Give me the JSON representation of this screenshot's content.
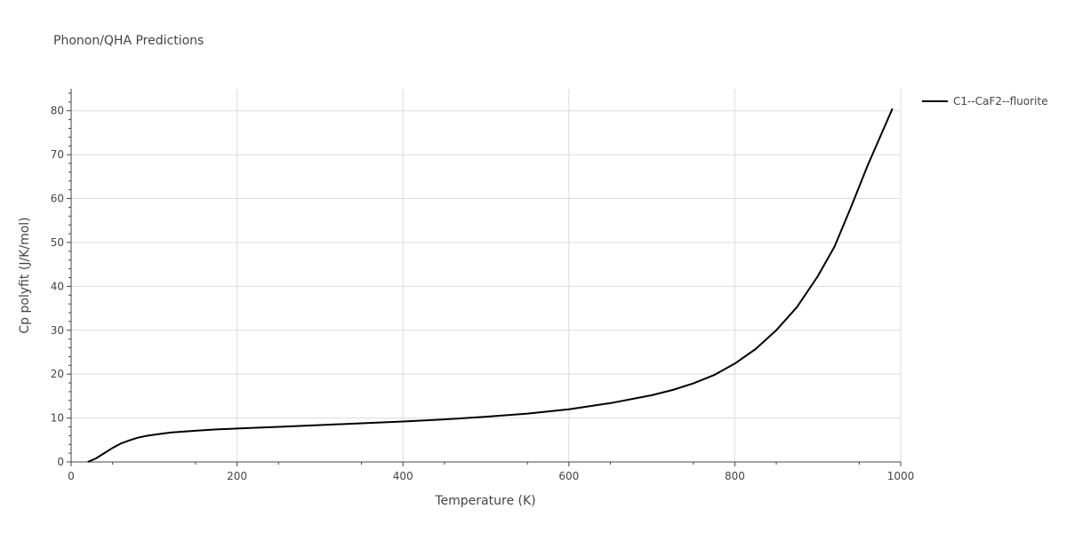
{
  "chart_data": {
    "type": "line",
    "title": "Phonon/QHA Predictions",
    "xlabel": "Temperature (K)",
    "ylabel": "Cp polyfit (J/K/mol)",
    "xlim": [
      0,
      1000
    ],
    "ylim": [
      0,
      85
    ],
    "x_ticks": [
      0,
      200,
      400,
      600,
      800,
      1000
    ],
    "y_ticks": [
      0,
      10,
      20,
      30,
      40,
      50,
      60,
      70,
      80
    ],
    "grid": true,
    "legend_position": "top-right",
    "series": [
      {
        "name": "C1--CaF2--fluorite",
        "color": "#000000",
        "x": [
          20,
          30,
          40,
          50,
          60,
          70,
          80,
          90,
          100,
          120,
          150,
          175,
          200,
          250,
          300,
          350,
          400,
          450,
          500,
          550,
          600,
          650,
          700,
          725,
          750,
          775,
          800,
          825,
          850,
          875,
          900,
          920,
          940,
          960,
          975,
          990
        ],
        "y": [
          0,
          0.8,
          2.0,
          3.2,
          4.2,
          4.9,
          5.5,
          5.9,
          6.2,
          6.7,
          7.1,
          7.4,
          7.6,
          8.0,
          8.4,
          8.8,
          9.2,
          9.7,
          10.3,
          11.0,
          12.0,
          13.4,
          15.2,
          16.4,
          17.9,
          19.8,
          22.4,
          25.7,
          30.0,
          35.3,
          42.3,
          49.0,
          58.0,
          67.5,
          74.0,
          80.5
        ]
      }
    ]
  }
}
